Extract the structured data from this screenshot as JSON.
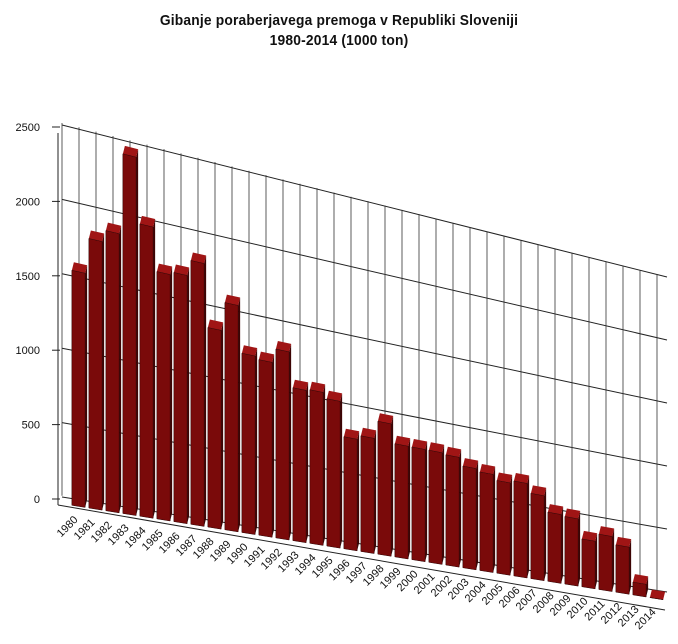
{
  "chart_data": {
    "type": "bar",
    "title_line1": "Gibanje poraberjavega premoga v Republiki Sloveniji",
    "title_line2": "1980-2014  (1000 ton)",
    "xlabel": "",
    "ylabel": "",
    "ylim": [
      0,
      2500
    ],
    "yticks": [
      "0",
      "500",
      "1000",
      "1500",
      "2000",
      "2500"
    ],
    "grid": true,
    "legend": "none",
    "bar_color": "#7a0a0a",
    "categories": [
      "1980",
      "1981",
      "1982",
      "1983",
      "1984",
      "1985",
      "1986",
      "1987",
      "1988",
      "1989",
      "1990",
      "1991",
      "1992",
      "1993",
      "1994",
      "1995",
      "1996",
      "1997",
      "1998",
      "1999",
      "2000",
      "2001",
      "2002",
      "2003",
      "2004",
      "2005",
      "2006",
      "2007",
      "2008",
      "2009",
      "2010",
      "2011",
      "2012",
      "2013",
      "2014"
    ],
    "values": [
      1580,
      1820,
      1900,
      2450,
      2000,
      1700,
      1720,
      1830,
      1390,
      1590,
      1260,
      1240,
      1340,
      1090,
      1100,
      1060,
      810,
      840,
      970,
      830,
      830,
      830,
      820,
      760,
      740,
      700,
      720,
      650,
      530,
      520,
      370,
      430,
      370,
      100,
      0
    ]
  }
}
